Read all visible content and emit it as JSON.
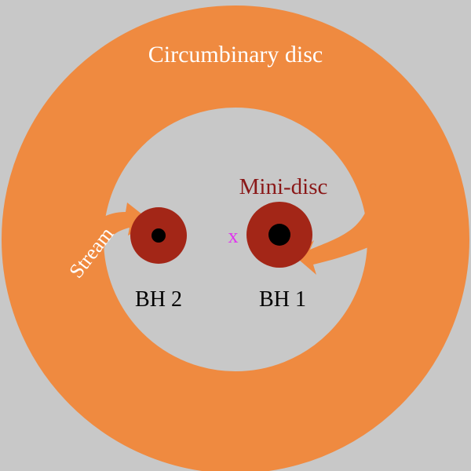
{
  "colors": {
    "background": "#c8c8c8",
    "disc": "#ef8a40",
    "mini_disc": "#a32617",
    "black_hole": "#000000",
    "center_mark": "#e033ef",
    "disc_label": "#ffffff",
    "mini_disc_label": "#8a1818",
    "bh_label": "#000000"
  },
  "labels": {
    "circumbinary_disc": "Circumbinary disc",
    "mini_disc": "Mini-disc",
    "stream": "Stream",
    "bh1": "BH 1",
    "bh2": "BH 2",
    "center_mark": "x"
  },
  "icons": {
    "black_hole_1": "black-hole-icon",
    "black_hole_2": "black-hole-icon",
    "center_of_mass": "cross-icon"
  }
}
